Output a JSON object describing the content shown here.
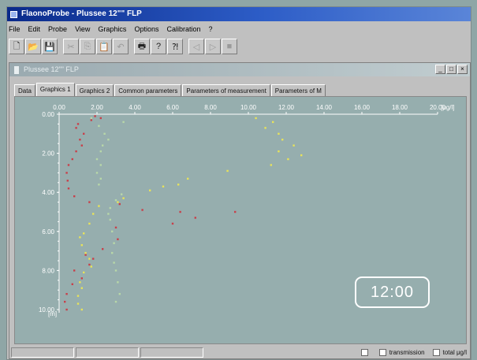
{
  "window": {
    "title": "FlaonoProbe - Plussee 12\"\" FLP"
  },
  "menu": [
    "File",
    "Edit",
    "Probe",
    "View",
    "Graphics",
    "Options",
    "Calibration",
    "?"
  ],
  "toolbar": {
    "icons": [
      "new-file-icon",
      "open-folder-icon",
      "save-icon",
      "cut-icon",
      "copy-icon",
      "paste-icon",
      "undo-icon",
      "print-icon",
      "help-icon",
      "context-help-icon",
      "back-icon",
      "forward-icon",
      "stop-icon"
    ]
  },
  "child_window": {
    "title": "Plussee 12\"\" FLP"
  },
  "tabs": [
    "Data",
    "Graphics 1",
    "Graphics 2",
    "Common parameters",
    "Parameters of measurement",
    "Parameters of M"
  ],
  "active_tab": "Graphics 1",
  "status": {
    "checkbox_faded": "",
    "transmission_label": "transmission",
    "total_label": "total μg/l"
  },
  "clock": "12:00",
  "chart_data": {
    "type": "scatter",
    "xlabel": "[μg/l]",
    "ylabel": "[m]",
    "x_ticks": [
      "0.00",
      "2.00",
      "4.00",
      "6.00",
      "8.00",
      "10.00",
      "12.00",
      "14.00",
      "16.00",
      "18.00",
      "20.00"
    ],
    "y_ticks": [
      "0.00",
      "2.00",
      "4.00",
      "6.00",
      "8.00",
      "10.00"
    ],
    "xlim": [
      0,
      20
    ],
    "ylim": [
      0,
      10
    ],
    "x_axis_position": "top",
    "colors": {
      "red": "#c8404a",
      "yellow": "#e8e35a",
      "green": "#b8d8a8"
    },
    "series": [
      {
        "color": "red",
        "points": [
          [
            1.9,
            0.1
          ],
          [
            2.2,
            0.2
          ],
          [
            1.7,
            0.3
          ],
          [
            1.0,
            0.5
          ],
          [
            0.9,
            0.7
          ],
          [
            1.3,
            1.0
          ],
          [
            1.1,
            1.3
          ],
          [
            1.2,
            1.6
          ],
          [
            0.9,
            1.9
          ],
          [
            0.7,
            2.3
          ],
          [
            0.5,
            2.6
          ],
          [
            0.4,
            3.0
          ],
          [
            0.45,
            3.4
          ],
          [
            0.5,
            3.8
          ],
          [
            0.8,
            4.2
          ],
          [
            1.6,
            4.5
          ],
          [
            3.2,
            4.6
          ],
          [
            4.4,
            4.9
          ],
          [
            6.4,
            5.0
          ],
          [
            7.2,
            5.3
          ],
          [
            9.3,
            5.0
          ],
          [
            6.0,
            5.6
          ],
          [
            3.0,
            5.8
          ],
          [
            3.1,
            6.4
          ],
          [
            2.3,
            6.9
          ],
          [
            1.4,
            7.2
          ],
          [
            1.8,
            7.4
          ],
          [
            1.6,
            7.7
          ],
          [
            0.8,
            8.0
          ],
          [
            1.2,
            8.4
          ],
          [
            0.7,
            8.7
          ],
          [
            0.4,
            9.2
          ],
          [
            0.3,
            9.6
          ],
          [
            0.4,
            10.0
          ]
        ]
      },
      {
        "color": "yellow",
        "points": [
          [
            10.4,
            0.2
          ],
          [
            11.3,
            0.4
          ],
          [
            10.9,
            0.7
          ],
          [
            11.6,
            1.0
          ],
          [
            11.8,
            1.3
          ],
          [
            12.4,
            1.6
          ],
          [
            11.6,
            1.9
          ],
          [
            12.8,
            2.1
          ],
          [
            12.1,
            2.3
          ],
          [
            11.2,
            2.6
          ],
          [
            8.9,
            2.9
          ],
          [
            6.8,
            3.3
          ],
          [
            6.3,
            3.6
          ],
          [
            5.5,
            3.7
          ],
          [
            4.8,
            3.9
          ],
          [
            3.4,
            4.3
          ],
          [
            3.1,
            4.5
          ],
          [
            2.1,
            4.7
          ],
          [
            1.8,
            5.1
          ],
          [
            1.6,
            5.6
          ],
          [
            1.3,
            6.1
          ],
          [
            1.1,
            6.3
          ],
          [
            1.2,
            6.7
          ],
          [
            1.4,
            7.1
          ],
          [
            1.6,
            7.4
          ],
          [
            1.7,
            7.8
          ],
          [
            1.3,
            8.1
          ],
          [
            1.1,
            8.6
          ],
          [
            1.2,
            8.9
          ],
          [
            1.0,
            9.3
          ],
          [
            1.0,
            9.7
          ],
          [
            1.2,
            10.0
          ]
        ]
      },
      {
        "color": "green",
        "points": [
          [
            1.7,
            0.2
          ],
          [
            3.4,
            0.4
          ],
          [
            2.1,
            0.6
          ],
          [
            2.4,
            1.0
          ],
          [
            2.6,
            1.3
          ],
          [
            2.3,
            1.6
          ],
          [
            2.2,
            1.9
          ],
          [
            2.0,
            2.3
          ],
          [
            2.2,
            2.6
          ],
          [
            2.0,
            3.0
          ],
          [
            2.2,
            3.3
          ],
          [
            2.1,
            3.6
          ],
          [
            3.3,
            4.1
          ],
          [
            3.0,
            4.4
          ],
          [
            2.7,
            4.8
          ],
          [
            2.6,
            5.1
          ],
          [
            2.7,
            5.4
          ],
          [
            2.8,
            6.0
          ],
          [
            2.9,
            6.6
          ],
          [
            2.8,
            7.1
          ],
          [
            2.9,
            7.6
          ],
          [
            3.0,
            8.0
          ],
          [
            3.1,
            8.6
          ],
          [
            3.2,
            9.2
          ],
          [
            3.0,
            9.6
          ]
        ]
      }
    ]
  }
}
